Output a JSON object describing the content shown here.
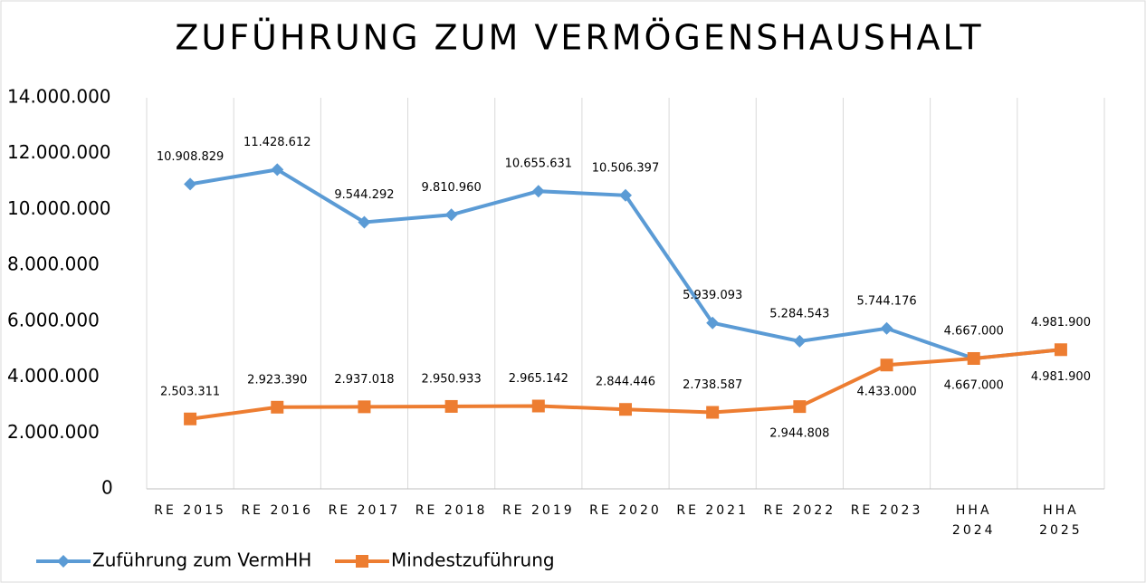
{
  "chart_data": {
    "type": "line",
    "title": "ZUFÜHRUNG ZUM VERMÖGENSHAUSHALT",
    "categories": [
      "RE 2015",
      "RE 2016",
      "RE 2017",
      "RE 2018",
      "RE 2019",
      "RE 2020",
      "RE 2021",
      "RE 2022",
      "RE 2023",
      "HHA 2024",
      "HHA 2025"
    ],
    "series": [
      {
        "name": "Zuführung zum VermHH",
        "color": "#5b9bd5",
        "marker": "diamond",
        "values": [
          10908829,
          11428612,
          9544292,
          9810960,
          10655631,
          10506397,
          5939093,
          5284543,
          5744176,
          4667000,
          4981900
        ],
        "value_labels": [
          "10.908.829",
          "11.428.612",
          "9.544.292",
          "9.810.960",
          "10.655.631",
          "10.506.397",
          "5.939.093",
          "5.284.543",
          "5.744.176",
          "4.667.000",
          "4.981.900"
        ]
      },
      {
        "name": "Mindestzuführung",
        "color": "#ed7d31",
        "marker": "square",
        "values": [
          2503311,
          2923390,
          2937018,
          2950933,
          2965142,
          2844446,
          2738587,
          2944808,
          4433000,
          4667000,
          4981900
        ],
        "value_labels": [
          "2.503.311",
          "2.923.390",
          "2.937.018",
          "2.950.933",
          "2.965.142",
          "2.844.446",
          "2.738.587",
          "2.944.808",
          "4.433.000",
          "4.667.000",
          "4.981.900"
        ]
      }
    ],
    "ylim": [
      0,
      14000000
    ],
    "yticks": [
      0,
      {
        "value": 2000000,
        "label": "2.000.000"
      },
      {
        "value": 4000000,
        "label": "4.000.000"
      },
      {
        "value": 6000000,
        "label": "6.000.000"
      },
      {
        "value": 8000000,
        "label": "8.000.000"
      },
      {
        "value": 10000000,
        "label": "10.000.000"
      },
      {
        "value": 12000000,
        "label": "12.000.000"
      },
      {
        "value": 14000000,
        "label": "14.000.000"
      }
    ],
    "legend": "bottom-left"
  }
}
